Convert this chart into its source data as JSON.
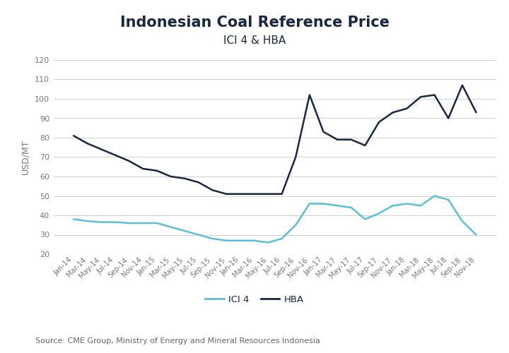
{
  "title": "Indonesian Coal Reference Price",
  "subtitle": "ICI 4 & HBA",
  "ylabel": "USD/MT",
  "source": "Source: CME Group, Ministry of Energy and Mineral Resources Indonesia",
  "ylim": [
    20,
    120
  ],
  "yticks": [
    20,
    30,
    40,
    50,
    60,
    70,
    80,
    90,
    100,
    110,
    120
  ],
  "background_color": "#ffffff",
  "grid_color": "#d0d0d0",
  "title_color": "#1a2744",
  "label_color": "#777777",
  "source_color": "#666666",
  "ici4_color": "#5bbfd6",
  "hba_color": "#1a2744",
  "x_labels": [
    "Jan-14",
    "Mar-14",
    "May-14",
    "Jul-14",
    "Sep-14",
    "Nov-14",
    "Jan-15",
    "Mar-15",
    "May-15",
    "Jul-15",
    "Sep-15",
    "Nov-15",
    "Jan-16",
    "Mar-16",
    "May-16",
    "Jul-16",
    "Sep-16",
    "Nov-16",
    "Jan-17",
    "Mar-17",
    "May-17",
    "Jul-17",
    "Sep-17",
    "Nov-17",
    "Jan-18",
    "Mar-18",
    "May-18",
    "Jul-18",
    "Sep-18",
    "Nov-18"
  ],
  "ici4_values": [
    38,
    37,
    36.5,
    36.5,
    36,
    36,
    36,
    34,
    32,
    30,
    28,
    27,
    27,
    27,
    26,
    28,
    35,
    46,
    46,
    45,
    44,
    38,
    41,
    45,
    46,
    45,
    50,
    48,
    37,
    30
  ],
  "hba_values": [
    81,
    77,
    74,
    71,
    68,
    64,
    63,
    60,
    59,
    57,
    53,
    51,
    51,
    51,
    51,
    51,
    70,
    102,
    83,
    79,
    79,
    76,
    88,
    93,
    95,
    101,
    102,
    90,
    107,
    93
  ]
}
